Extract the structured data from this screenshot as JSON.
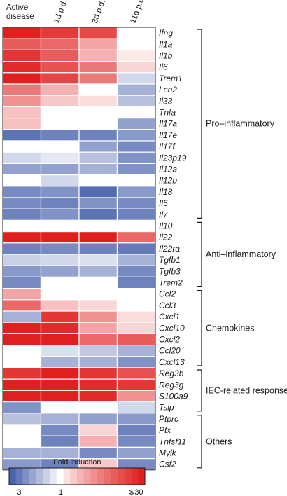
{
  "chart_data": {
    "type": "heatmap",
    "columns": [
      "Active\ndisease",
      "1d p.d.",
      "3d p.d.",
      "11d p.d."
    ],
    "rows": [
      {
        "gene": "Ifng",
        "values": [
          30,
          18,
          14,
          1
        ]
      },
      {
        "gene": "Il1a",
        "values": [
          10,
          8,
          3,
          1
        ]
      },
      {
        "gene": "Il1b",
        "values": [
          20,
          10,
          2.5,
          1.2
        ]
      },
      {
        "gene": "Il6",
        "values": [
          25,
          12,
          6,
          1.5
        ]
      },
      {
        "gene": "Trem1",
        "values": [
          30,
          15,
          6,
          -1.5
        ]
      },
      {
        "gene": "Lcn2",
        "values": [
          6,
          2.5,
          1,
          -2
        ]
      },
      {
        "gene": "Il33",
        "values": [
          4,
          1.8,
          1.4,
          -1.8
        ]
      },
      {
        "gene": "Tnfa",
        "values": [
          2,
          1,
          1,
          1
        ]
      },
      {
        "gene": "Il17a",
        "values": [
          2,
          1,
          1,
          -2.2
        ]
      },
      {
        "gene": "Il17e",
        "values": [
          -2.8,
          -2.6,
          -2.6,
          -2.3
        ]
      },
      {
        "gene": "Il17f",
        "values": [
          1,
          1,
          -2.2,
          -2.5
        ]
      },
      {
        "gene": "Il23p19",
        "values": [
          -1.5,
          -1.3,
          -1.8,
          -2.4
        ]
      },
      {
        "gene": "Il12a",
        "values": [
          -2.2,
          -2.2,
          -2.0,
          -2.4
        ]
      },
      {
        "gene": "Il12b",
        "values": [
          1,
          -1.5,
          1,
          1
        ]
      },
      {
        "gene": "Il18",
        "values": [
          -2.5,
          -2.4,
          -2.9,
          -2.3
        ]
      },
      {
        "gene": "Il5",
        "values": [
          -2.5,
          -2.6,
          -2.4,
          -2.5
        ]
      },
      {
        "gene": "Il7",
        "values": [
          -2.6,
          -2.4,
          -2.8,
          -2.6
        ]
      },
      {
        "gene": "Il10",
        "values": [
          1,
          1,
          1,
          1
        ]
      },
      {
        "gene": "Il22",
        "values": [
          30,
          30,
          30,
          8
        ]
      },
      {
        "gene": "Il22ra",
        "values": [
          -2.6,
          -2.5,
          -2.6,
          -2.7
        ]
      },
      {
        "gene": "Tgfb1",
        "values": [
          -1.6,
          -1.5,
          -1.4,
          -2.0
        ]
      },
      {
        "gene": "Tgfb3",
        "values": [
          -2.3,
          -2.2,
          -2.0,
          -2.5
        ]
      },
      {
        "gene": "Trem2",
        "values": [
          -2.5,
          1,
          1,
          -2.6
        ]
      },
      {
        "gene": "Ccl2",
        "values": [
          3,
          1,
          1,
          1
        ]
      },
      {
        "gene": "Ccl3",
        "values": [
          8,
          2,
          1.5,
          1
        ]
      },
      {
        "gene": "Cxcl1",
        "values": [
          -2.0,
          20,
          4,
          1.4
        ]
      },
      {
        "gene": "Cxcl10",
        "values": [
          30,
          25,
          3,
          1.5
        ]
      },
      {
        "gene": "Cxcl2",
        "values": [
          30,
          30,
          8,
          10
        ]
      },
      {
        "gene": "Ccl20",
        "values": [
          1,
          -1.4,
          -1.7,
          -2.0
        ]
      },
      {
        "gene": "Cxcl13",
        "values": [
          1,
          -2.0,
          -2.0,
          -2.4
        ]
      },
      {
        "gene": "Reg3b",
        "values": [
          20,
          30,
          20,
          12
        ]
      },
      {
        "gene": "Reg3g",
        "values": [
          30,
          30,
          25,
          20
        ]
      },
      {
        "gene": "S100a9",
        "values": [
          30,
          30,
          25,
          4
        ]
      },
      {
        "gene": "Tslp",
        "values": [
          -2.4,
          1,
          1,
          -1.5
        ]
      },
      {
        "gene": "Ptprc",
        "values": [
          -1.8,
          -2.0,
          -2.2,
          -2.3
        ]
      },
      {
        "gene": "Ptx",
        "values": [
          1,
          -2.5,
          1.5,
          -2.6
        ]
      },
      {
        "gene": "Tnfsf11",
        "values": [
          1,
          -2.6,
          2.5,
          -2.5
        ]
      },
      {
        "gene": "Mylk",
        "values": [
          -2.0,
          -2.0,
          -2.5,
          -2.2
        ]
      },
      {
        "gene": "Csf2",
        "values": [
          -2.3,
          -2.6,
          1.8,
          -2.5
        ]
      }
    ],
    "groups": [
      {
        "label": "Pro–inflammatory",
        "start": 0,
        "end": 16
      },
      {
        "label": "Anti–inflammatory",
        "start": 17,
        "end": 22
      },
      {
        "label": "Chemokines",
        "start": 23,
        "end": 29
      },
      {
        "label": "IEC-related response",
        "start": 30,
        "end": 33
      },
      {
        "label": "Others",
        "start": 34,
        "end": 38
      }
    ],
    "legend": {
      "title": "Fold induction",
      "min_label": "−3",
      "mid_label": "1",
      "max_label": "⩾30"
    },
    "colors": {
      "low": "#4a63ad",
      "mid": "#ffffff",
      "high": "#e0201f"
    }
  }
}
